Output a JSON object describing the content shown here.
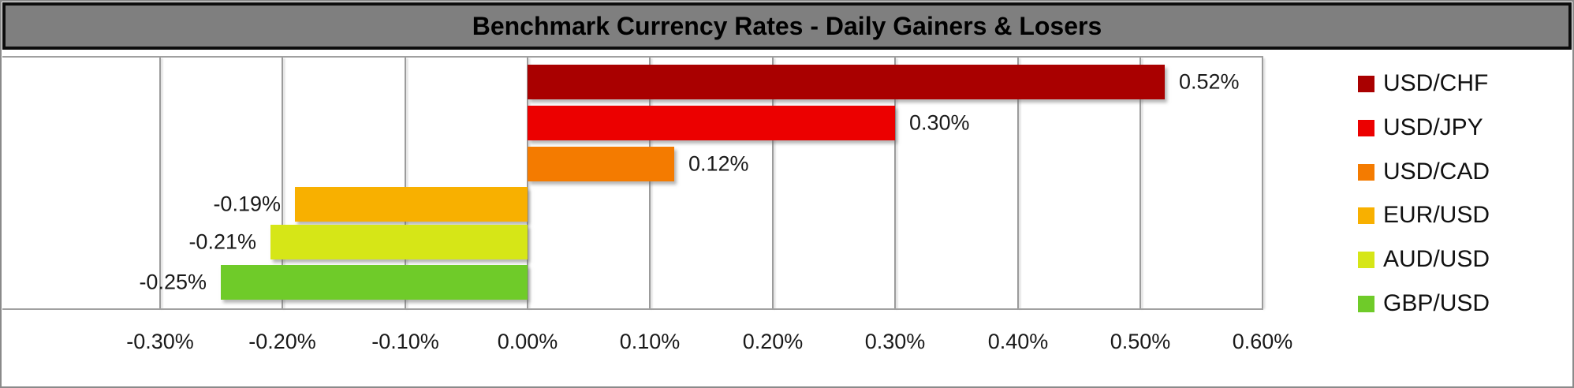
{
  "title": "Benchmark Currency Rates - Daily Gainers & Losers",
  "chart_data": {
    "type": "bar",
    "orientation": "horizontal",
    "title": "Benchmark Currency Rates - Daily Gainers & Losers",
    "categories": [
      "USD/CHF",
      "USD/JPY",
      "USD/CAD",
      "EUR/USD",
      "AUD/USD",
      "GBP/USD"
    ],
    "values": [
      0.52,
      0.3,
      0.12,
      -0.19,
      -0.21,
      -0.25
    ],
    "value_labels": [
      "0.52%",
      "0.30%",
      "0.12%",
      "-0.19%",
      "-0.21%",
      "-0.25%"
    ],
    "bar_colors": [
      "#a90000",
      "#ec0000",
      "#f47b00",
      "#f8b000",
      "#d6e617",
      "#6fcb29"
    ],
    "xlabel": "",
    "ylabel": "",
    "xlim": [
      -0.3,
      0.6
    ],
    "x_ticks": [
      -0.3,
      -0.2,
      -0.1,
      0.0,
      0.1,
      0.2,
      0.3,
      0.4,
      0.5,
      0.6
    ],
    "x_tick_labels": [
      "-0.30%",
      "-0.20%",
      "-0.10%",
      "0.00%",
      "0.10%",
      "0.20%",
      "0.30%",
      "0.40%",
      "0.50%",
      "0.60%"
    ],
    "grid": true,
    "legend_position": "right"
  },
  "legend": {
    "items": [
      {
        "label": "USD/CHF",
        "color": "#a90000"
      },
      {
        "label": "USD/JPY",
        "color": "#ec0000"
      },
      {
        "label": "USD/CAD",
        "color": "#f47b00"
      },
      {
        "label": "EUR/USD",
        "color": "#f8b000"
      },
      {
        "label": "AUD/USD",
        "color": "#d6e617"
      },
      {
        "label": "GBP/USD",
        "color": "#6fcb29"
      }
    ]
  },
  "colors": {
    "title_background": "#7f7f7f",
    "title_border": "#0c0c0c",
    "title_text": "#000000",
    "gridline": "#9b9b9b",
    "plot_border": "#a0a0a0",
    "axis_text": "#191919",
    "frame_border": "#8a8a8a"
  }
}
